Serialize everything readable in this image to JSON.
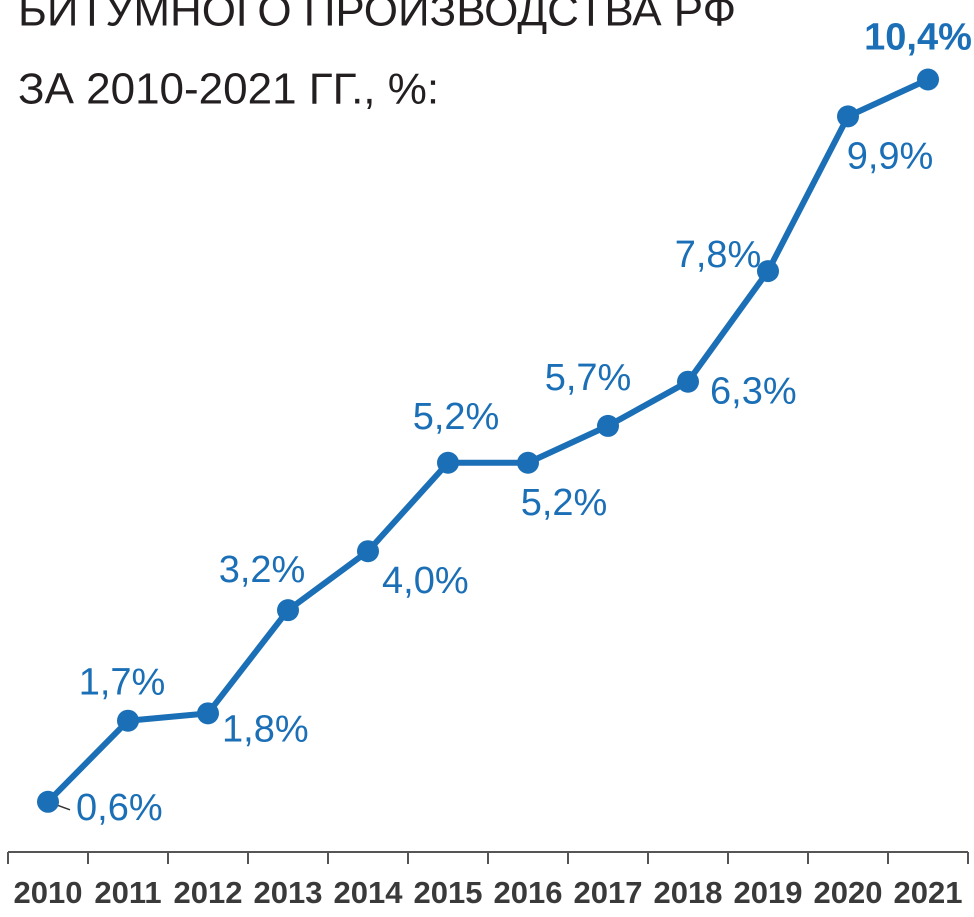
{
  "chart_data": {
    "type": "line",
    "title_lines": [
      "БИТУМНОГО ПРОИЗВОДСТВА РФ",
      "ЗА 2010-2021 ГГ., %:"
    ],
    "categories": [
      "2010",
      "2011",
      "2012",
      "2013",
      "2014",
      "2015",
      "2016",
      "2017",
      "2018",
      "2019",
      "2020",
      "2021"
    ],
    "series": [
      {
        "color": "#1b6fb6",
        "values": [
          0.6,
          1.7,
          1.8,
          3.2,
          4.0,
          5.2,
          5.2,
          5.7,
          6.3,
          7.8,
          9.9,
          10.4
        ],
        "value_labels": [
          "0,6%",
          "1,7%",
          "1,8%",
          "3,2%",
          "4,0%",
          "5,2%",
          "5,2%",
          "5,7%",
          "6,3%",
          "7,8%",
          "9,9%",
          "10,4%"
        ]
      }
    ]
  }
}
